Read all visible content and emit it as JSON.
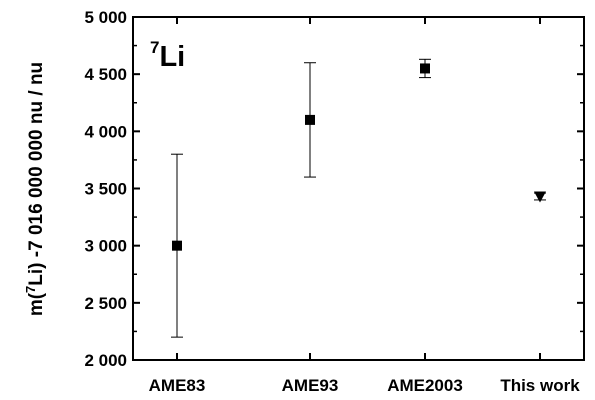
{
  "chart_data": {
    "type": "scatter",
    "categories": [
      "AME83",
      "AME93",
      "AME2003",
      "This work"
    ],
    "series": [
      {
        "values": [
          3000,
          4100,
          4550,
          3430
        ],
        "errors": [
          800,
          500,
          80,
          30
        ],
        "markers": [
          "square",
          "square",
          "square",
          "triangle-down"
        ]
      }
    ],
    "ylabel": {
      "prefix": "m(",
      "superscript": "7",
      "suffix": "Li) -7 016 000 000 nu / nu"
    },
    "annotation": {
      "superscript": "7",
      "text": "Li"
    },
    "ylim": [
      2000,
      5000
    ],
    "yticks": [
      2000,
      2500,
      3000,
      3500,
      4000,
      4500,
      5000
    ],
    "ytick_labels": [
      "2 000",
      "2 500",
      "3 000",
      "3 500",
      "4 000",
      "4 500",
      "5 000"
    ],
    "grid": false,
    "legend": "none"
  }
}
